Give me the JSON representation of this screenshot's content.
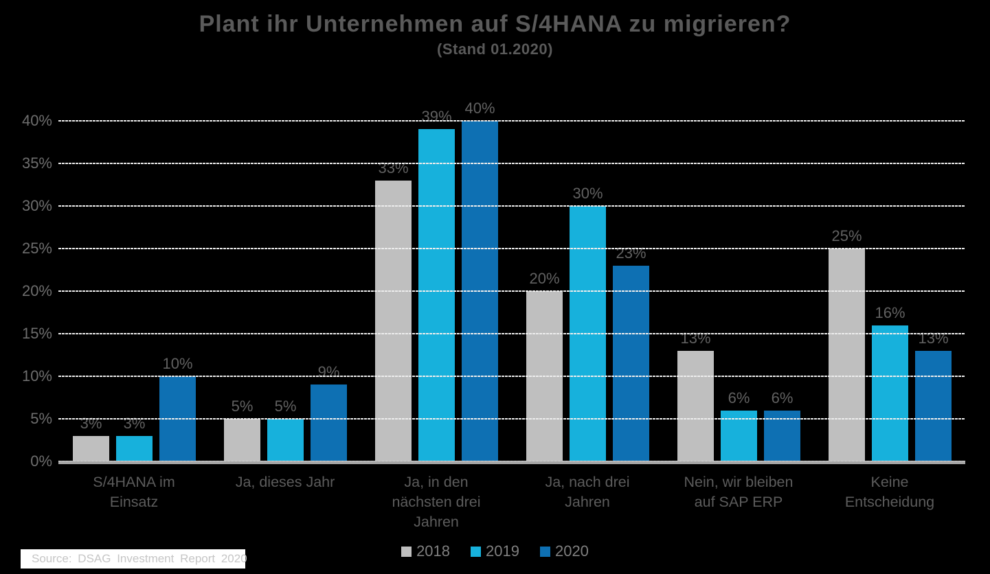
{
  "chart_data": {
    "type": "bar",
    "title": "Plant ihr Unternehmen auf S/4HANA zu migrieren?",
    "subtitle": "(Stand 01.2020)",
    "categories": [
      "S/4HANA im Einsatz",
      "Ja, dieses Jahr",
      "Ja, in den nächsten drei Jahren",
      "Ja, nach drei Jahren",
      "Nein, wir bleiben auf SAP ERP",
      "Keine Entscheidung"
    ],
    "series": [
      {
        "name": "2018",
        "color": "#bfbfbf",
        "values": [
          3,
          5,
          33,
          20,
          13,
          25
        ]
      },
      {
        "name": "2019",
        "color": "#17b1dc",
        "values": [
          3,
          5,
          39,
          30,
          6,
          16
        ]
      },
      {
        "name": "2020",
        "color": "#0e70b3",
        "values": [
          10,
          9,
          40,
          23,
          6,
          13
        ]
      }
    ],
    "value_suffix": "%",
    "y_axis": {
      "min": 0,
      "max": 40,
      "step": 5,
      "tick_suffix": "%"
    },
    "grid": true,
    "gridlines_over_bars": true,
    "legend_position": "bottom",
    "xlabel": "",
    "ylabel": ""
  },
  "source": {
    "text": "Source: DSAG Investment Report 2020"
  },
  "colors": {
    "background": "#000000",
    "grid": "#ededed",
    "baseline": "#a6a6a6",
    "title_text": "#5a5a5a",
    "axis_text": "#6e6e6e",
    "data_label_text": "#616161",
    "category_text": "#5c5c5c",
    "legend_text": "#7f7f7f",
    "source_background": "#ffffff",
    "source_text": "#c6c6c6"
  }
}
